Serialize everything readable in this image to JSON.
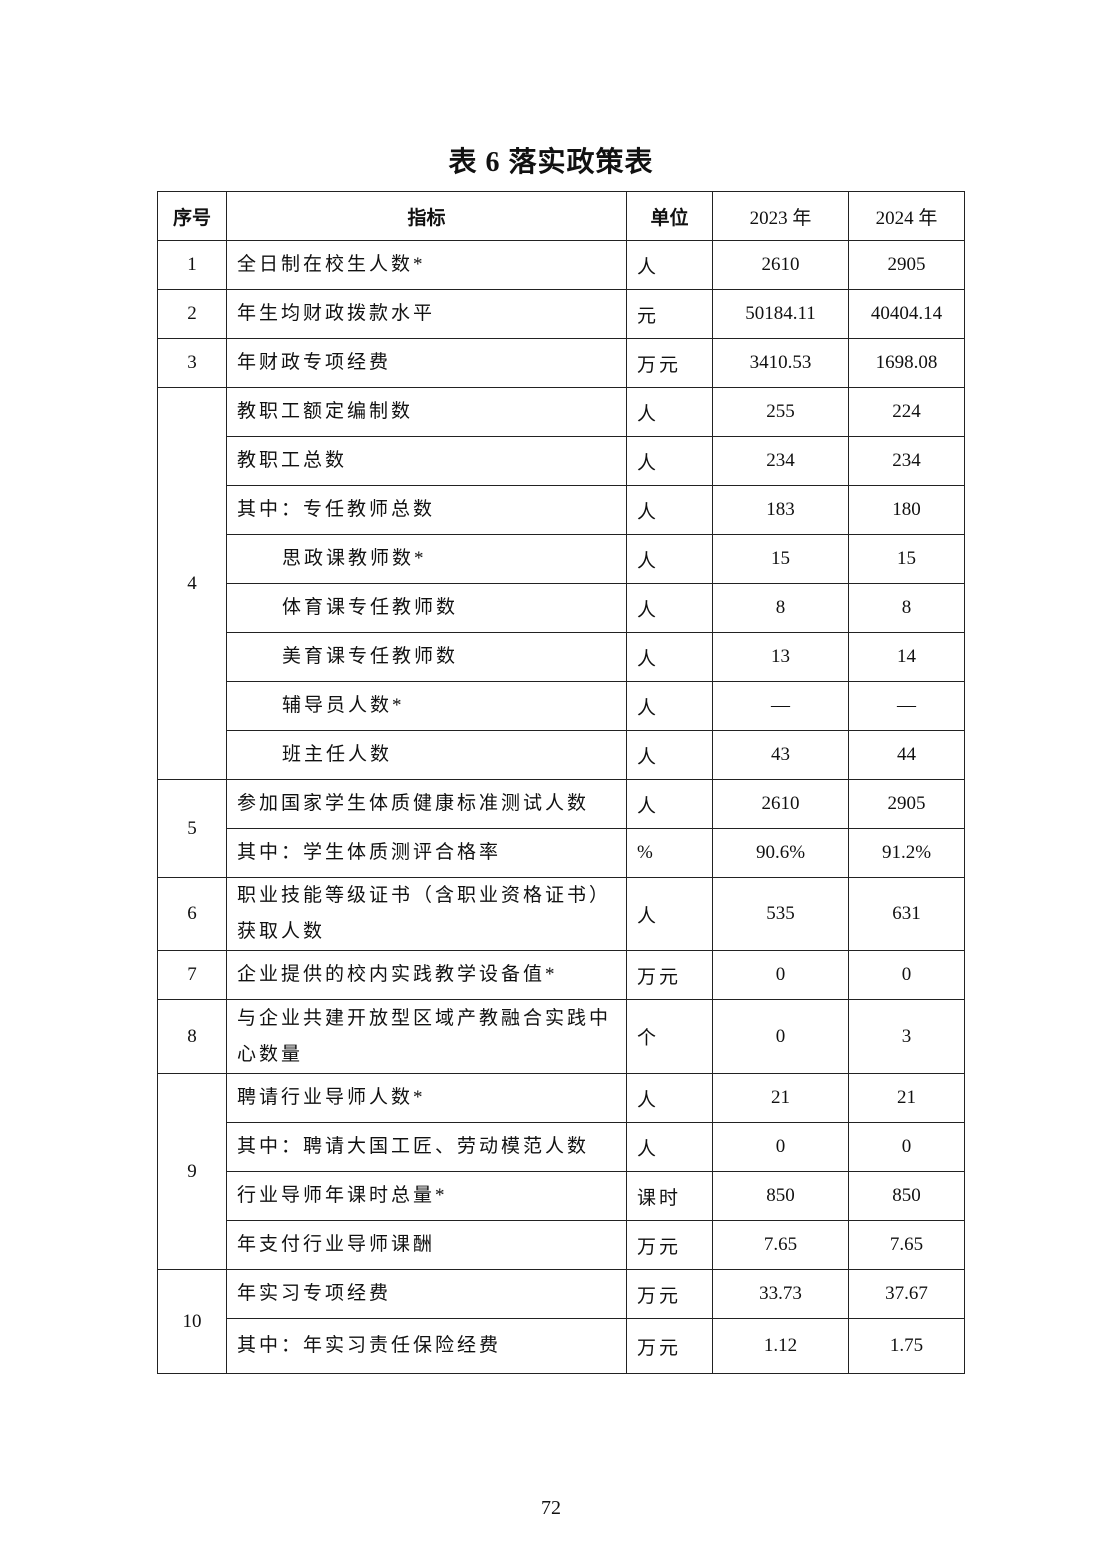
{
  "title": "表 6 落实政策表",
  "headers": {
    "seq": "序号",
    "indicator": "指标",
    "unit": "单位",
    "y2023": "2023 年",
    "y2024": "2024 年"
  },
  "rows": [
    {
      "seq": "1",
      "indicator": "全日制在校生人数*",
      "unit": "人",
      "y2023": "2610",
      "y2024": "2905"
    },
    {
      "seq": "2",
      "indicator": "年生均财政拨款水平",
      "unit": "元",
      "y2023": "50184.11",
      "y2024": "40404.14"
    },
    {
      "seq": "3",
      "indicator": "年财政专项经费",
      "unit": "万元",
      "y2023": "3410.53",
      "y2024": "1698.08"
    },
    {
      "seq": "4",
      "span": 8,
      "indicator": "教职工额定编制数",
      "unit": "人",
      "y2023": "255",
      "y2024": "224"
    },
    {
      "indicator": "教职工总数",
      "unit": "人",
      "y2023": "234",
      "y2024": "234"
    },
    {
      "indicator": "其中：专任教师总数",
      "unit": "人",
      "y2023": "183",
      "y2024": "180"
    },
    {
      "indicator": "思政课教师数*",
      "sub": true,
      "unit": "人",
      "y2023": "15",
      "y2024": "15"
    },
    {
      "indicator": "体育课专任教师数",
      "sub": true,
      "unit": "人",
      "y2023": "8",
      "y2024": "8"
    },
    {
      "indicator": "美育课专任教师数",
      "sub": true,
      "unit": "人",
      "y2023": "13",
      "y2024": "14"
    },
    {
      "indicator": "辅导员人数*",
      "sub": true,
      "unit": "人",
      "y2023": "—",
      "y2024": "—"
    },
    {
      "indicator": "班主任人数",
      "sub": true,
      "unit": "人",
      "y2023": "43",
      "y2024": "44"
    },
    {
      "seq": "5",
      "span": 2,
      "indicator": "参加国家学生体质健康标准测试人数",
      "unit": "人",
      "y2023": "2610",
      "y2024": "2905"
    },
    {
      "indicator": "其中：学生体质测评合格率",
      "unit": "%",
      "y2023": "90.6%",
      "y2024": "91.2%"
    },
    {
      "seq": "6",
      "indicator": "职业技能等级证书（含职业资格证书）获取人数",
      "unit": "人",
      "y2023": "535",
      "y2024": "631",
      "tall": true
    },
    {
      "seq": "7",
      "indicator": "企业提供的校内实践教学设备值*",
      "unit": "万元",
      "y2023": "0",
      "y2024": "0"
    },
    {
      "seq": "8",
      "indicator": "与企业共建开放型区域产教融合实践中心数量",
      "unit": "个",
      "y2023": "0",
      "y2024": "3",
      "tall": true
    },
    {
      "seq": "9",
      "span": 4,
      "indicator": "聘请行业导师人数*",
      "unit": "人",
      "y2023": "21",
      "y2024": "21"
    },
    {
      "indicator": "其中：聘请大国工匠、劳动模范人数",
      "unit": "人",
      "y2023": "0",
      "y2024": "0"
    },
    {
      "indicator": "行业导师年课时总量*",
      "unit": "课时",
      "y2023": "850",
      "y2024": "850"
    },
    {
      "indicator": "年支付行业导师课酬",
      "unit": "万元",
      "y2023": "7.65",
      "y2024": "7.65"
    },
    {
      "seq": "10",
      "span": 2,
      "indicator": "年实习专项经费",
      "unit": "万元",
      "y2023": "33.73",
      "y2024": "37.67"
    },
    {
      "indicator": "其中：年实习责任保险经费",
      "unit": "万元",
      "y2023": "1.12",
      "y2024": "1.75"
    }
  ],
  "page_number": "72"
}
